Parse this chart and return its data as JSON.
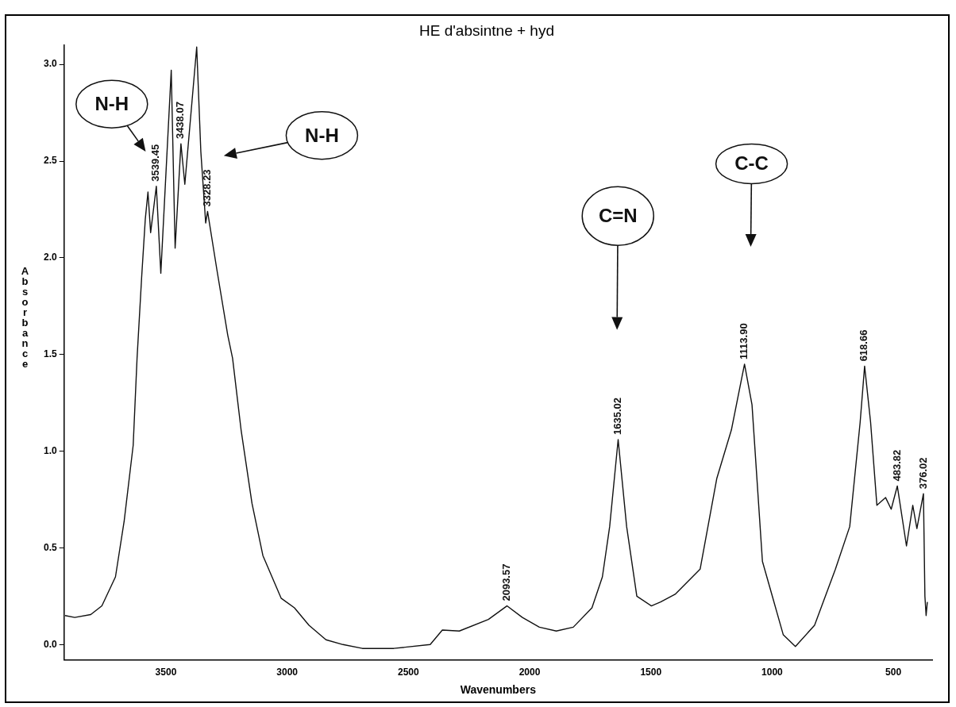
{
  "chart_data": {
    "type": "line",
    "title": "HE d'absintne + hyd",
    "xlabel": "Wavenumbers",
    "ylabel": "Absorbance",
    "xlim": [
      3920,
      340
    ],
    "xticks": [
      3500,
      3000,
      2500,
      2000,
      1500,
      1000,
      500
    ],
    "ylim": [
      -0.08,
      3.1
    ],
    "yticks": [
      {
        "value": 0,
        "label": "0.0"
      },
      {
        "value": 0.5,
        "label": "0.5"
      },
      {
        "value": 1,
        "label": "1.0"
      },
      {
        "value": 1.5,
        "label": "1.5"
      },
      {
        "value": 2,
        "label": "2.0"
      },
      {
        "value": 2.5,
        "label": "2.5"
      },
      {
        "value": 3,
        "label": "3.0"
      }
    ],
    "grid": false,
    "legend": false,
    "marker": "none",
    "line_style": "solid",
    "series": [
      {
        "color": "#111111",
        "x": [
          3916,
          3876,
          3810,
          3764,
          3708,
          3672,
          3635,
          3619,
          3600,
          3585,
          3574,
          3563,
          3539.45,
          3521,
          3478,
          3462,
          3438.07,
          3422,
          3373,
          3356,
          3336,
          3328.23,
          3290,
          3245,
          3225,
          3190,
          3145,
          3100,
          3025,
          2970,
          2910,
          2840,
          2770,
          2690,
          2560,
          2410,
          2360,
          2290,
          2170,
          2093.57,
          2030,
          1960,
          1890,
          1820,
          1743,
          1700,
          1670,
          1635.02,
          1600,
          1558,
          1498,
          1460,
          1400,
          1297,
          1228,
          1168,
          1113.9,
          1083,
          1040,
          997,
          954,
          904,
          825,
          739,
          680,
          637,
          618.66,
          594,
          568,
          532,
          509,
          483.82,
          446,
          420,
          403,
          376.02,
          370,
          365,
          360
        ],
        "values": [
          0.15,
          0.14,
          0.155,
          0.2,
          0.35,
          0.64,
          1.03,
          1.48,
          1.9,
          2.2,
          2.34,
          2.13,
          2.37,
          1.92,
          2.97,
          2.05,
          2.59,
          2.38,
          3.09,
          2.55,
          2.18,
          2.24,
          1.94,
          1.6,
          1.48,
          1.11,
          0.73,
          0.46,
          0.24,
          0.19,
          0.1,
          0.025,
          0,
          -0.02,
          -0.02,
          0,
          0.075,
          0.07,
          0.13,
          0.2,
          0.14,
          0.09,
          0.07,
          0.09,
          0.19,
          0.35,
          0.61,
          1.06,
          0.61,
          0.25,
          0.2,
          0.22,
          0.26,
          0.39,
          0.86,
          1.11,
          1.45,
          1.24,
          0.43,
          0.24,
          0.05,
          -0.01,
          0.1,
          0.39,
          0.61,
          1.15,
          1.44,
          1.15,
          0.72,
          0.76,
          0.7,
          0.82,
          0.51,
          0.72,
          0.6,
          0.78,
          0.25,
          0.15,
          0.22
        ]
      }
    ],
    "annotations": [
      {
        "text": "3539.45",
        "x": 3539.45,
        "y": 2.37
      },
      {
        "text": "3438.07",
        "x": 3438.07,
        "y": 2.59
      },
      {
        "text": "3328.23",
        "x": 3328.23,
        "y": 2.24
      },
      {
        "text": "2093.57",
        "x": 2093.57,
        "y": 0.2
      },
      {
        "text": "1635.02",
        "x": 1635.02,
        "y": 1.06
      },
      {
        "text": "1113.90",
        "x": 1113.9,
        "y": 1.45
      },
      {
        "text": "618.66",
        "x": 618.66,
        "y": 1.44
      },
      {
        "text": "483.82",
        "x": 483.82,
        "y": 0.82
      },
      {
        "text": "376.02",
        "x": 376.02,
        "y": 0.78
      },
      "N-H",
      "N-H",
      "C=N",
      "C-C"
    ]
  }
}
